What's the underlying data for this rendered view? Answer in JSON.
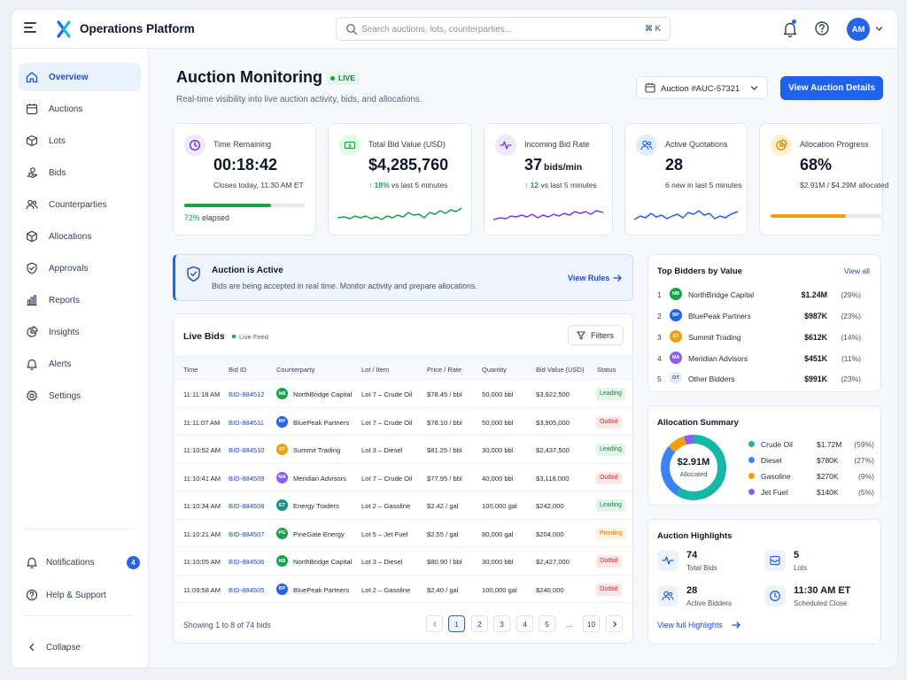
{
  "app": {
    "title": "Operations Platform"
  },
  "header": {
    "search_placeholder": "Search auctions, lots, counterparties...",
    "search_shortcut": "⌘ K",
    "user_initials": "AM"
  },
  "sidebar": {
    "items": [
      {
        "label": "Overview",
        "icon": "home-icon",
        "active": true
      },
      {
        "label": "Auctions",
        "icon": "calendar-icon"
      },
      {
        "label": "Lots",
        "icon": "box-icon"
      },
      {
        "label": "Bids",
        "icon": "hand-icon"
      },
      {
        "label": "Counterparties",
        "icon": "users-icon"
      },
      {
        "label": "Allocations",
        "icon": "cube-icon"
      },
      {
        "label": "Approvals",
        "icon": "shield-check-icon"
      },
      {
        "label": "Reports",
        "icon": "bar-chart-icon"
      },
      {
        "label": "Insights",
        "icon": "pie-chart-icon"
      },
      {
        "label": "Alerts",
        "icon": "bell-icon"
      },
      {
        "label": "Settings",
        "icon": "gear-icon"
      }
    ],
    "notifications_label": "Notifications",
    "notifications_count": "4",
    "help_label": "Help & Support",
    "collapse_label": "Collapse"
  },
  "page": {
    "title": "Auction Monitoring",
    "live_badge": "LIVE",
    "subtitle": "Real-time visibility into live auction activity, bids, and allocations.",
    "auction_select": "Auction #AUC-57321",
    "primary_button": "View Auction Details"
  },
  "kpis": {
    "time": {
      "label": "Time Remaining",
      "value": "00:18:42",
      "sub": "Closes today, 11:30 AM ET",
      "progress": 0.72,
      "progress_pct": "72%",
      "progress_suffix": "elapsed"
    },
    "bid_value": {
      "label": "Total Bid Value (USD)",
      "value": "$4,285,760",
      "delta": "↑ 18%",
      "delta_suffix": "vs last 5 minutes"
    },
    "bid_rate": {
      "label": "Incoming Bid Rate",
      "value": "37",
      "unit": "bids/min",
      "delta": "↑ 12",
      "delta_suffix": "vs last 5 minutes"
    },
    "quotations": {
      "label": "Active Quotations",
      "value": "28",
      "sub": "6 new in last 5 minutes"
    },
    "allocation": {
      "label": "Allocation Progress",
      "value": "68%",
      "sub": "$2.91M / $4.29M allocated",
      "progress": 0.68
    }
  },
  "banner": {
    "title": "Auction is Active",
    "text": "Bids are being accepted in real time. Monitor activity and prepare allocations.",
    "link": "View Rules"
  },
  "bids": {
    "title": "Live Bids",
    "live_feed": "Live Feed",
    "filters_label": "Filters",
    "columns": [
      "Time",
      "Bid ID",
      "Counterparty",
      "Lot / Item",
      "Price / Rate",
      "Quantity",
      "Bid Value (USD)",
      "Status"
    ],
    "rows": [
      {
        "time": "11:11:18 AM",
        "id": "BID-884512",
        "cp_initials": "NB",
        "cp_color": "#16a34a",
        "counterparty": "NorthBridge Capital",
        "lot": "Lot 7 – Crude Oil",
        "price": "$78.45 / bbl",
        "qty": "50,000 bbl",
        "value": "$3,922,500",
        "status": "Leading",
        "status_kind": "leading"
      },
      {
        "time": "11:11:07 AM",
        "id": "BID-884511",
        "cp_initials": "BP",
        "cp_color": "#2563eb",
        "counterparty": "BluePeak Partners",
        "lot": "Lot 7 – Crude Oil",
        "price": "$78.10 / bbl",
        "qty": "50,000 bbl",
        "value": "$3,905,000",
        "status": "Outbid",
        "status_kind": "outbid"
      },
      {
        "time": "11:10:52 AM",
        "id": "BID-884510",
        "cp_initials": "ST",
        "cp_color": "#f59e0b",
        "counterparty": "Summit Trading",
        "lot": "Lot 3 – Diesel",
        "price": "$81.25 / bbl",
        "qty": "30,000 bbl",
        "value": "$2,437,500",
        "status": "Leading",
        "status_kind": "leading"
      },
      {
        "time": "11:10:41 AM",
        "id": "BID-884509",
        "cp_initials": "MA",
        "cp_color": "#8b5cf6",
        "counterparty": "Meridian Advisors",
        "lot": "Lot 7 – Crude Oil",
        "price": "$77.95 / bbl",
        "qty": "40,000 bbl",
        "value": "$3,118,000",
        "status": "Outbid",
        "status_kind": "outbid"
      },
      {
        "time": "11:10:34 AM",
        "id": "BID-884508",
        "cp_initials": "ET",
        "cp_color": "#0d9488",
        "counterparty": "Energy Traders",
        "lot": "Lot 2 – Gasoline",
        "price": "$2.42 / gal",
        "qty": "100,000 gal",
        "value": "$242,000",
        "status": "Leading",
        "status_kind": "leading"
      },
      {
        "time": "11:10:21 AM",
        "id": "BID-884507",
        "cp_initials": "PG",
        "cp_color": "#16a34a",
        "counterparty": "PineGate Energy",
        "lot": "Lot 5 – Jet Fuel",
        "price": "$2.55 / gal",
        "qty": "80,000 gal",
        "value": "$204,000",
        "status": "Pending",
        "status_kind": "pending"
      },
      {
        "time": "11:10:05 AM",
        "id": "BID-884506",
        "cp_initials": "NB",
        "cp_color": "#16a34a",
        "counterparty": "NorthBridge Capital",
        "lot": "Lot 3 – Diesel",
        "price": "$80.90 / bbl",
        "qty": "30,000 bbl",
        "value": "$2,427,000",
        "status": "Outbid",
        "status_kind": "outbid"
      },
      {
        "time": "11:09:58 AM",
        "id": "BID-884505",
        "cp_initials": "BP",
        "cp_color": "#2563eb",
        "counterparty": "BluePeak Partners",
        "lot": "Lot 2 – Gasoline",
        "price": "$2.40 / gal",
        "qty": "100,000 gal",
        "value": "$240,000",
        "status": "Outbid",
        "status_kind": "outbid"
      }
    ],
    "showing": "Showing 1 to 8 of 74 bids",
    "pages": [
      "1",
      "2",
      "3",
      "4",
      "5",
      "...",
      "10"
    ]
  },
  "top_bidders": {
    "title": "Top Bidders by Value",
    "view_all": "View all",
    "rows": [
      {
        "rank": "1",
        "initials": "NB",
        "color": "#16a34a",
        "name": "NorthBridge Capital",
        "value": "$1.24M",
        "pct": "(29%)"
      },
      {
        "rank": "2",
        "initials": "BP",
        "color": "#2563eb",
        "name": "BluePeak Partners",
        "value": "$987K",
        "pct": "(23%)"
      },
      {
        "rank": "3",
        "initials": "ST",
        "color": "#f59e0b",
        "name": "Summit Trading",
        "value": "$612K",
        "pct": "(14%)"
      },
      {
        "rank": "4",
        "initials": "MA",
        "color": "#8b5cf6",
        "name": "Meridian Advisors",
        "value": "$451K",
        "pct": "(11%)"
      },
      {
        "rank": "5",
        "initials": "OT",
        "color": "#e2e8f0",
        "name": "Other Bidders",
        "value": "$991K",
        "pct": "(23%)"
      }
    ]
  },
  "allocation_summary": {
    "title": "Allocation Summary",
    "center_value": "$2.91M",
    "center_label": "Allocated",
    "segments": [
      {
        "name": "Crude Oil",
        "value": "$1.72M",
        "pct": "(59%)",
        "share": 59,
        "color": "#14b8a6"
      },
      {
        "name": "Diesel",
        "value": "$780K",
        "pct": "(27%)",
        "share": 27,
        "color": "#3b82f6"
      },
      {
        "name": "Gasoline",
        "value": "$270K",
        "pct": "(9%)",
        "share": 9,
        "color": "#f59e0b"
      },
      {
        "name": "Jet Fuel",
        "value": "$140K",
        "pct": "(5%)",
        "share": 5,
        "color": "#8b5cf6"
      }
    ]
  },
  "highlights": {
    "title": "Auction Highlights",
    "items": [
      {
        "value": "74",
        "label": "Total Bids",
        "icon": "activity-icon"
      },
      {
        "value": "5",
        "label": "Lots",
        "icon": "inbox-icon"
      },
      {
        "value": "28",
        "label": "Active Bidders",
        "icon": "users-icon"
      },
      {
        "value": "11:30 AM ET",
        "label": "Scheduled Close",
        "icon": "clock-icon"
      }
    ],
    "link": "View full Highlights"
  },
  "colors": {
    "primary": "#1d63ee",
    "success": "#16a34a",
    "danger": "#dc2626",
    "warning": "#f59e0b"
  }
}
